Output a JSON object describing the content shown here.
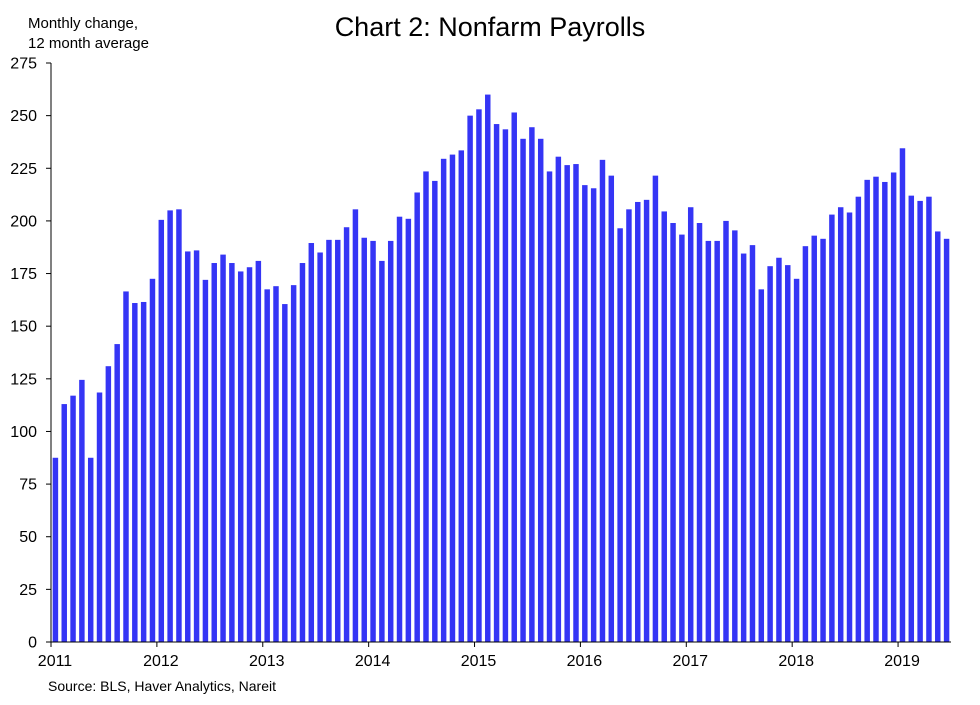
{
  "chart_data": {
    "type": "bar",
    "title": "Chart 2: Nonfarm Payrolls",
    "ylabel_lines": [
      "Monthly change,",
      "12 month average"
    ],
    "source": "Source: BLS, Haver Analytics, Nareit",
    "ylim": [
      0,
      275
    ],
    "yticks": [
      0,
      25,
      50,
      75,
      100,
      125,
      150,
      175,
      200,
      225,
      250,
      275
    ],
    "xtick_labels": [
      "2011",
      "2012",
      "2013",
      "2014",
      "2015",
      "2016",
      "2017",
      "2018",
      "2019"
    ],
    "grid": false,
    "bar_color": "#3535f5",
    "values": [
      87.5,
      113,
      117,
      124.5,
      87.5,
      118.5,
      131,
      141.5,
      166.5,
      161,
      161.5,
      172.5,
      200.5,
      205,
      205.5,
      185.5,
      186,
      172,
      180,
      184,
      180,
      176,
      178,
      181,
      167.5,
      169,
      160.5,
      169.5,
      180,
      189.5,
      185,
      191,
      191,
      197,
      205.5,
      192,
      190.5,
      181,
      190.5,
      202,
      201,
      213.5,
      223.5,
      219,
      229.5,
      231.5,
      233.5,
      250,
      253,
      260,
      246,
      243.5,
      251.5,
      239,
      244.5,
      239,
      223.5,
      230.5,
      226.5,
      227,
      217,
      215.5,
      229,
      221.5,
      196.5,
      205.5,
      209,
      210,
      221.5,
      204.5,
      199,
      193.5,
      206.5,
      199,
      190.5,
      190.5,
      200,
      195.5,
      184.5,
      188.5,
      167.5,
      178.5,
      182.5,
      179,
      172.5,
      188,
      193,
      191.5,
      203,
      206.5,
      204,
      211.5,
      219.5,
      221,
      218.5,
      223,
      234.5,
      212,
      209.5,
      211.5,
      195,
      191.5
    ]
  }
}
